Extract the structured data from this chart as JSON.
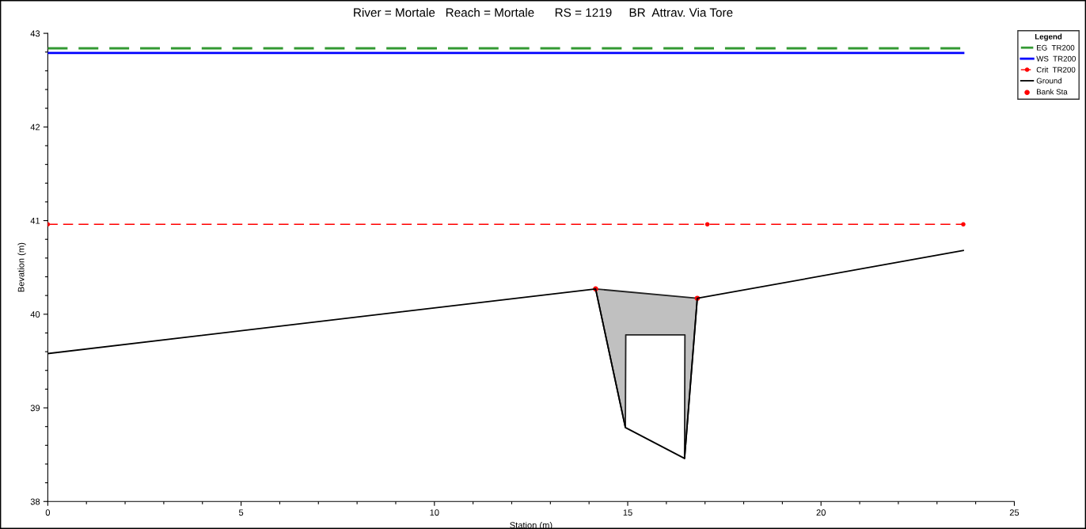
{
  "chart_data": {
    "type": "line",
    "title": "River = Mortale   Reach = Mortale      RS = 1219     BR  Attrav. Via Tore",
    "xlabel": "Station (m)",
    "ylabel": "Bevation (m)",
    "legend_title": "Legend",
    "legend": "top right",
    "grid": false,
    "xlim": [
      0,
      25
    ],
    "ylim": [
      38,
      43
    ],
    "xticks": [
      0,
      {
        "value": 1,
        "label": null
      },
      {
        "value": 2,
        "label": null
      },
      {
        "value": 3,
        "label": null
      },
      {
        "value": 4,
        "label": null
      },
      5,
      {
        "value": 6,
        "label": null
      },
      {
        "value": 7,
        "label": null
      },
      {
        "value": 8,
        "label": null
      },
      {
        "value": 9,
        "label": null
      },
      10,
      {
        "value": 11,
        "label": null
      },
      {
        "value": 12,
        "label": null
      },
      {
        "value": 13,
        "label": null
      },
      {
        "value": 14,
        "label": null
      },
      15,
      {
        "value": 16,
        "label": null
      },
      {
        "value": 17,
        "label": null
      },
      {
        "value": 18,
        "label": null
      },
      {
        "value": 19,
        "label": null
      },
      20,
      {
        "value": 21,
        "label": null
      },
      {
        "value": 22,
        "label": null
      },
      {
        "value": 23,
        "label": null
      },
      {
        "value": 24,
        "label": null
      },
      25
    ],
    "yticks": [
      38,
      {
        "value": 38.2,
        "label": null
      },
      {
        "value": 38.4,
        "label": null
      },
      {
        "value": 38.6,
        "label": null
      },
      {
        "value": 38.8,
        "label": null
      },
      39,
      {
        "value": 39.2,
        "label": null
      },
      {
        "value": 39.4,
        "label": null
      },
      {
        "value": 39.6,
        "label": null
      },
      {
        "value": 39.8,
        "label": null
      },
      40,
      {
        "value": 40.2,
        "label": null
      },
      {
        "value": 40.4,
        "label": null
      },
      {
        "value": 40.6,
        "label": null
      },
      {
        "value": 40.8,
        "label": null
      },
      41,
      {
        "value": 41.2,
        "label": null
      },
      {
        "value": 41.4,
        "label": null
      },
      {
        "value": 41.6,
        "label": null
      },
      {
        "value": 41.8,
        "label": null
      },
      42,
      {
        "value": 42.2,
        "label": null
      },
      {
        "value": 42.4,
        "label": null
      },
      {
        "value": 42.6,
        "label": null
      },
      {
        "value": 42.8,
        "label": null
      },
      43
    ],
    "series": [
      {
        "type": "area",
        "color": "#c0c0c0",
        "line_style": "solid",
        "x": [
          14.17,
          16.8,
          16.47,
          16.48,
          14.95,
          14.94
        ],
        "values": [
          40.27,
          40.17,
          38.46,
          39.78,
          39.78,
          38.79
        ]
      },
      {
        "name": "EG  TR200",
        "color": "#339933",
        "line_style": "dashed",
        "marker": "none",
        "x": [
          0,
          23.68
        ],
        "values": [
          42.84,
          42.84
        ]
      },
      {
        "name": "WS  TR200",
        "color": "#0000ff",
        "line_style": "solid",
        "marker": "none",
        "x": [
          0,
          23.68
        ],
        "values": [
          42.79,
          42.79
        ]
      },
      {
        "name": "Crit  TR200",
        "color": "#ff0000",
        "line_style": "dashed",
        "marker": "circle",
        "x": [
          0,
          17.06,
          23.68
        ],
        "values": [
          40.96,
          40.96,
          40.96
        ]
      },
      {
        "name": "Ground",
        "color": "#000000",
        "line_style": "solid",
        "marker": "none",
        "x": [
          0,
          14.17,
          14.94,
          16.47,
          16.8,
          23.68
        ],
        "values": [
          39.58,
          40.27,
          38.79,
          38.46,
          40.17,
          40.68
        ]
      },
      {
        "name": "Bank Sta",
        "type": "scatter",
        "color": "#ff0000",
        "marker": "circle",
        "x": [
          14.17,
          16.8
        ],
        "values": [
          40.27,
          40.17
        ]
      }
    ]
  }
}
